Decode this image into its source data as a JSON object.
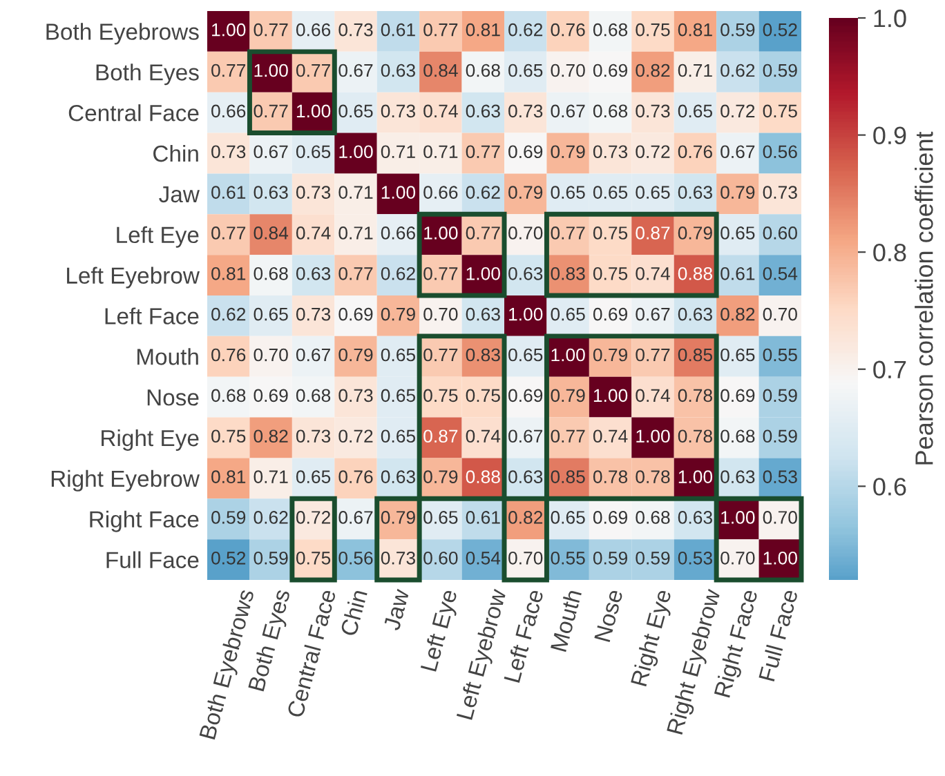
{
  "chart_data": {
    "type": "heatmap",
    "clabel": "Pearson correlation coefficient",
    "categories": [
      "Both Eyebrows",
      "Both Eyes",
      "Central Face",
      "Chin",
      "Jaw",
      "Left Eye",
      "Left Eyebrow",
      "Left Face",
      "Mouth",
      "Nose",
      "Right Eye",
      "Right Eyebrow",
      "Right Face",
      "Full Face"
    ],
    "y_categories": [
      "Both Eyebrows",
      "Both Eyes",
      "Central Face",
      "Chin",
      "Jaw",
      "Left Eye",
      "Left Eyebrow",
      "Left Face",
      "Mouth",
      "Nose",
      "Right Eye",
      "Right Eyebrow",
      "Right Face",
      "Full Face"
    ],
    "cells": [
      [
        1.0,
        0.77,
        0.66,
        0.73,
        0.61,
        0.77,
        0.81,
        0.62,
        0.76,
        0.68,
        0.75,
        0.81,
        0.59,
        0.52
      ],
      [
        0.77,
        1.0,
        0.77,
        0.67,
        0.63,
        0.84,
        0.68,
        0.65,
        0.7,
        0.69,
        0.82,
        0.71,
        0.62,
        0.59
      ],
      [
        0.66,
        0.77,
        1.0,
        0.65,
        0.73,
        0.74,
        0.63,
        0.73,
        0.67,
        0.68,
        0.73,
        0.65,
        0.72,
        0.75
      ],
      [
        0.73,
        0.67,
        0.65,
        1.0,
        0.71,
        0.71,
        0.77,
        0.69,
        0.79,
        0.73,
        0.72,
        0.76,
        0.67,
        0.56
      ],
      [
        0.61,
        0.63,
        0.73,
        0.71,
        1.0,
        0.66,
        0.62,
        0.79,
        0.65,
        0.65,
        0.65,
        0.63,
        0.79,
        0.73
      ],
      [
        0.77,
        0.84,
        0.74,
        0.71,
        0.66,
        1.0,
        0.77,
        0.7,
        0.77,
        0.75,
        0.87,
        0.79,
        0.65,
        0.6
      ],
      [
        0.81,
        0.68,
        0.63,
        0.77,
        0.62,
        0.77,
        1.0,
        0.63,
        0.83,
        0.75,
        0.74,
        0.88,
        0.61,
        0.54
      ],
      [
        0.62,
        0.65,
        0.73,
        0.69,
        0.79,
        0.7,
        0.63,
        1.0,
        0.65,
        0.69,
        0.67,
        0.63,
        0.82,
        0.7
      ],
      [
        0.76,
        0.7,
        0.67,
        0.79,
        0.65,
        0.77,
        0.83,
        0.65,
        1.0,
        0.79,
        0.77,
        0.85,
        0.65,
        0.55
      ],
      [
        0.68,
        0.69,
        0.68,
        0.73,
        0.65,
        0.75,
        0.75,
        0.69,
        0.79,
        1.0,
        0.74,
        0.78,
        0.69,
        0.59
      ],
      [
        0.75,
        0.82,
        0.73,
        0.72,
        0.65,
        0.87,
        0.74,
        0.67,
        0.77,
        0.74,
        1.0,
        0.78,
        0.68,
        0.59
      ],
      [
        0.81,
        0.71,
        0.65,
        0.76,
        0.63,
        0.79,
        0.88,
        0.63,
        0.85,
        0.78,
        0.78,
        1.0,
        0.63,
        0.53
      ],
      [
        0.59,
        0.62,
        0.72,
        0.67,
        0.79,
        0.65,
        0.61,
        0.82,
        0.65,
        0.69,
        0.68,
        0.63,
        1.0,
        0.7
      ],
      [
        0.52,
        0.59,
        0.75,
        0.56,
        0.73,
        0.6,
        0.54,
        0.7,
        0.55,
        0.59,
        0.59,
        0.53,
        0.7,
        1.0
      ]
    ],
    "cell_labels": [
      [
        "1.00",
        "0.77",
        "0.66",
        "0.73",
        "0.61",
        "0.77",
        "0.81",
        "0.62",
        "0.76",
        "0.68",
        "0.75",
        "0.81",
        "0.59",
        "0.52"
      ],
      [
        "0.77",
        "1.00",
        "0.77",
        "0.67",
        "0.63",
        "0.84",
        "0.68",
        "0.65",
        "0.70",
        "0.69",
        "0.82",
        "0.71",
        "0.62",
        "0.59"
      ],
      [
        "0.66",
        "0.77",
        "1.00",
        "0.65",
        "0.73",
        "0.74",
        "0.63",
        "0.73",
        "0.67",
        "0.68",
        "0.73",
        "0.65",
        "0.72",
        "0.75"
      ],
      [
        "0.73",
        "0.67",
        "0.65",
        "1.00",
        "0.71",
        "0.71",
        "0.77",
        "0.69",
        "0.79",
        "0.73",
        "0.72",
        "0.76",
        "0.67",
        "0.56"
      ],
      [
        "0.61",
        "0.63",
        "0.73",
        "0.71",
        "1.00",
        "0.66",
        "0.62",
        "0.79",
        "0.65",
        "0.65",
        "0.65",
        "0.63",
        "0.79",
        "0.73"
      ],
      [
        "0.77",
        "0.84",
        "0.74",
        "0.71",
        "0.66",
        "1.00",
        "0.77",
        "0.70",
        "0.77",
        "0.75",
        "0.87",
        "0.79",
        "0.65",
        "0.60"
      ],
      [
        "0.81",
        "0.68",
        "0.63",
        "0.77",
        "0.62",
        "0.77",
        "1.00",
        "0.63",
        "0.83",
        "0.75",
        "0.74",
        "0.88",
        "0.61",
        "0.54"
      ],
      [
        "0.62",
        "0.65",
        "0.73",
        "0.69",
        "0.79",
        "0.70",
        "0.63",
        "1.00",
        "0.65",
        "0.69",
        "0.67",
        "0.63",
        "0.82",
        "0.70"
      ],
      [
        "0.76",
        "0.70",
        "0.67",
        "0.79",
        "0.65",
        "0.77",
        "0.83",
        "0.65",
        "1.00",
        "0.79",
        "0.77",
        "0.85",
        "0.65",
        "0.55"
      ],
      [
        "0.68",
        "0.69",
        "0.68",
        "0.73",
        "0.65",
        "0.75",
        "0.75",
        "0.69",
        "0.79",
        "1.00",
        "0.74",
        "0.78",
        "0.69",
        "0.59"
      ],
      [
        "0.75",
        "0.82",
        "0.73",
        "0.72",
        "0.65",
        "0.87",
        "0.74",
        "0.67",
        "0.77",
        "0.74",
        "1.00",
        "0.78",
        "0.68",
        "0.59"
      ],
      [
        "0.81",
        "0.71",
        "0.65",
        "0.76",
        "0.63",
        "0.79",
        "0.88",
        "0.63",
        "0.85",
        "0.78",
        "0.78",
        "1.00",
        "0.63",
        "0.53"
      ],
      [
        "0.59",
        "0.62",
        "0.72",
        "0.67",
        "0.79",
        "0.65",
        "0.61",
        "0.82",
        "0.65",
        "0.69",
        "0.68",
        "0.63",
        "1.00",
        "0.70"
      ],
      [
        "0.52",
        "0.59",
        "0.75",
        "0.56",
        "0.73",
        "0.60",
        "0.54",
        "0.70",
        "0.55",
        "0.59",
        "0.59",
        "0.53",
        "0.70",
        "1.00"
      ]
    ],
    "clim": [
      0.52,
      1.0
    ],
    "cticks": [
      {
        "value": 0.6,
        "label": "0.6"
      },
      {
        "value": 0.7,
        "label": "0.7"
      },
      {
        "value": 0.8,
        "label": "0.8"
      },
      {
        "value": 0.9,
        "label": "0.9"
      },
      {
        "value": 1.0,
        "label": "1.0"
      }
    ]
  }
}
